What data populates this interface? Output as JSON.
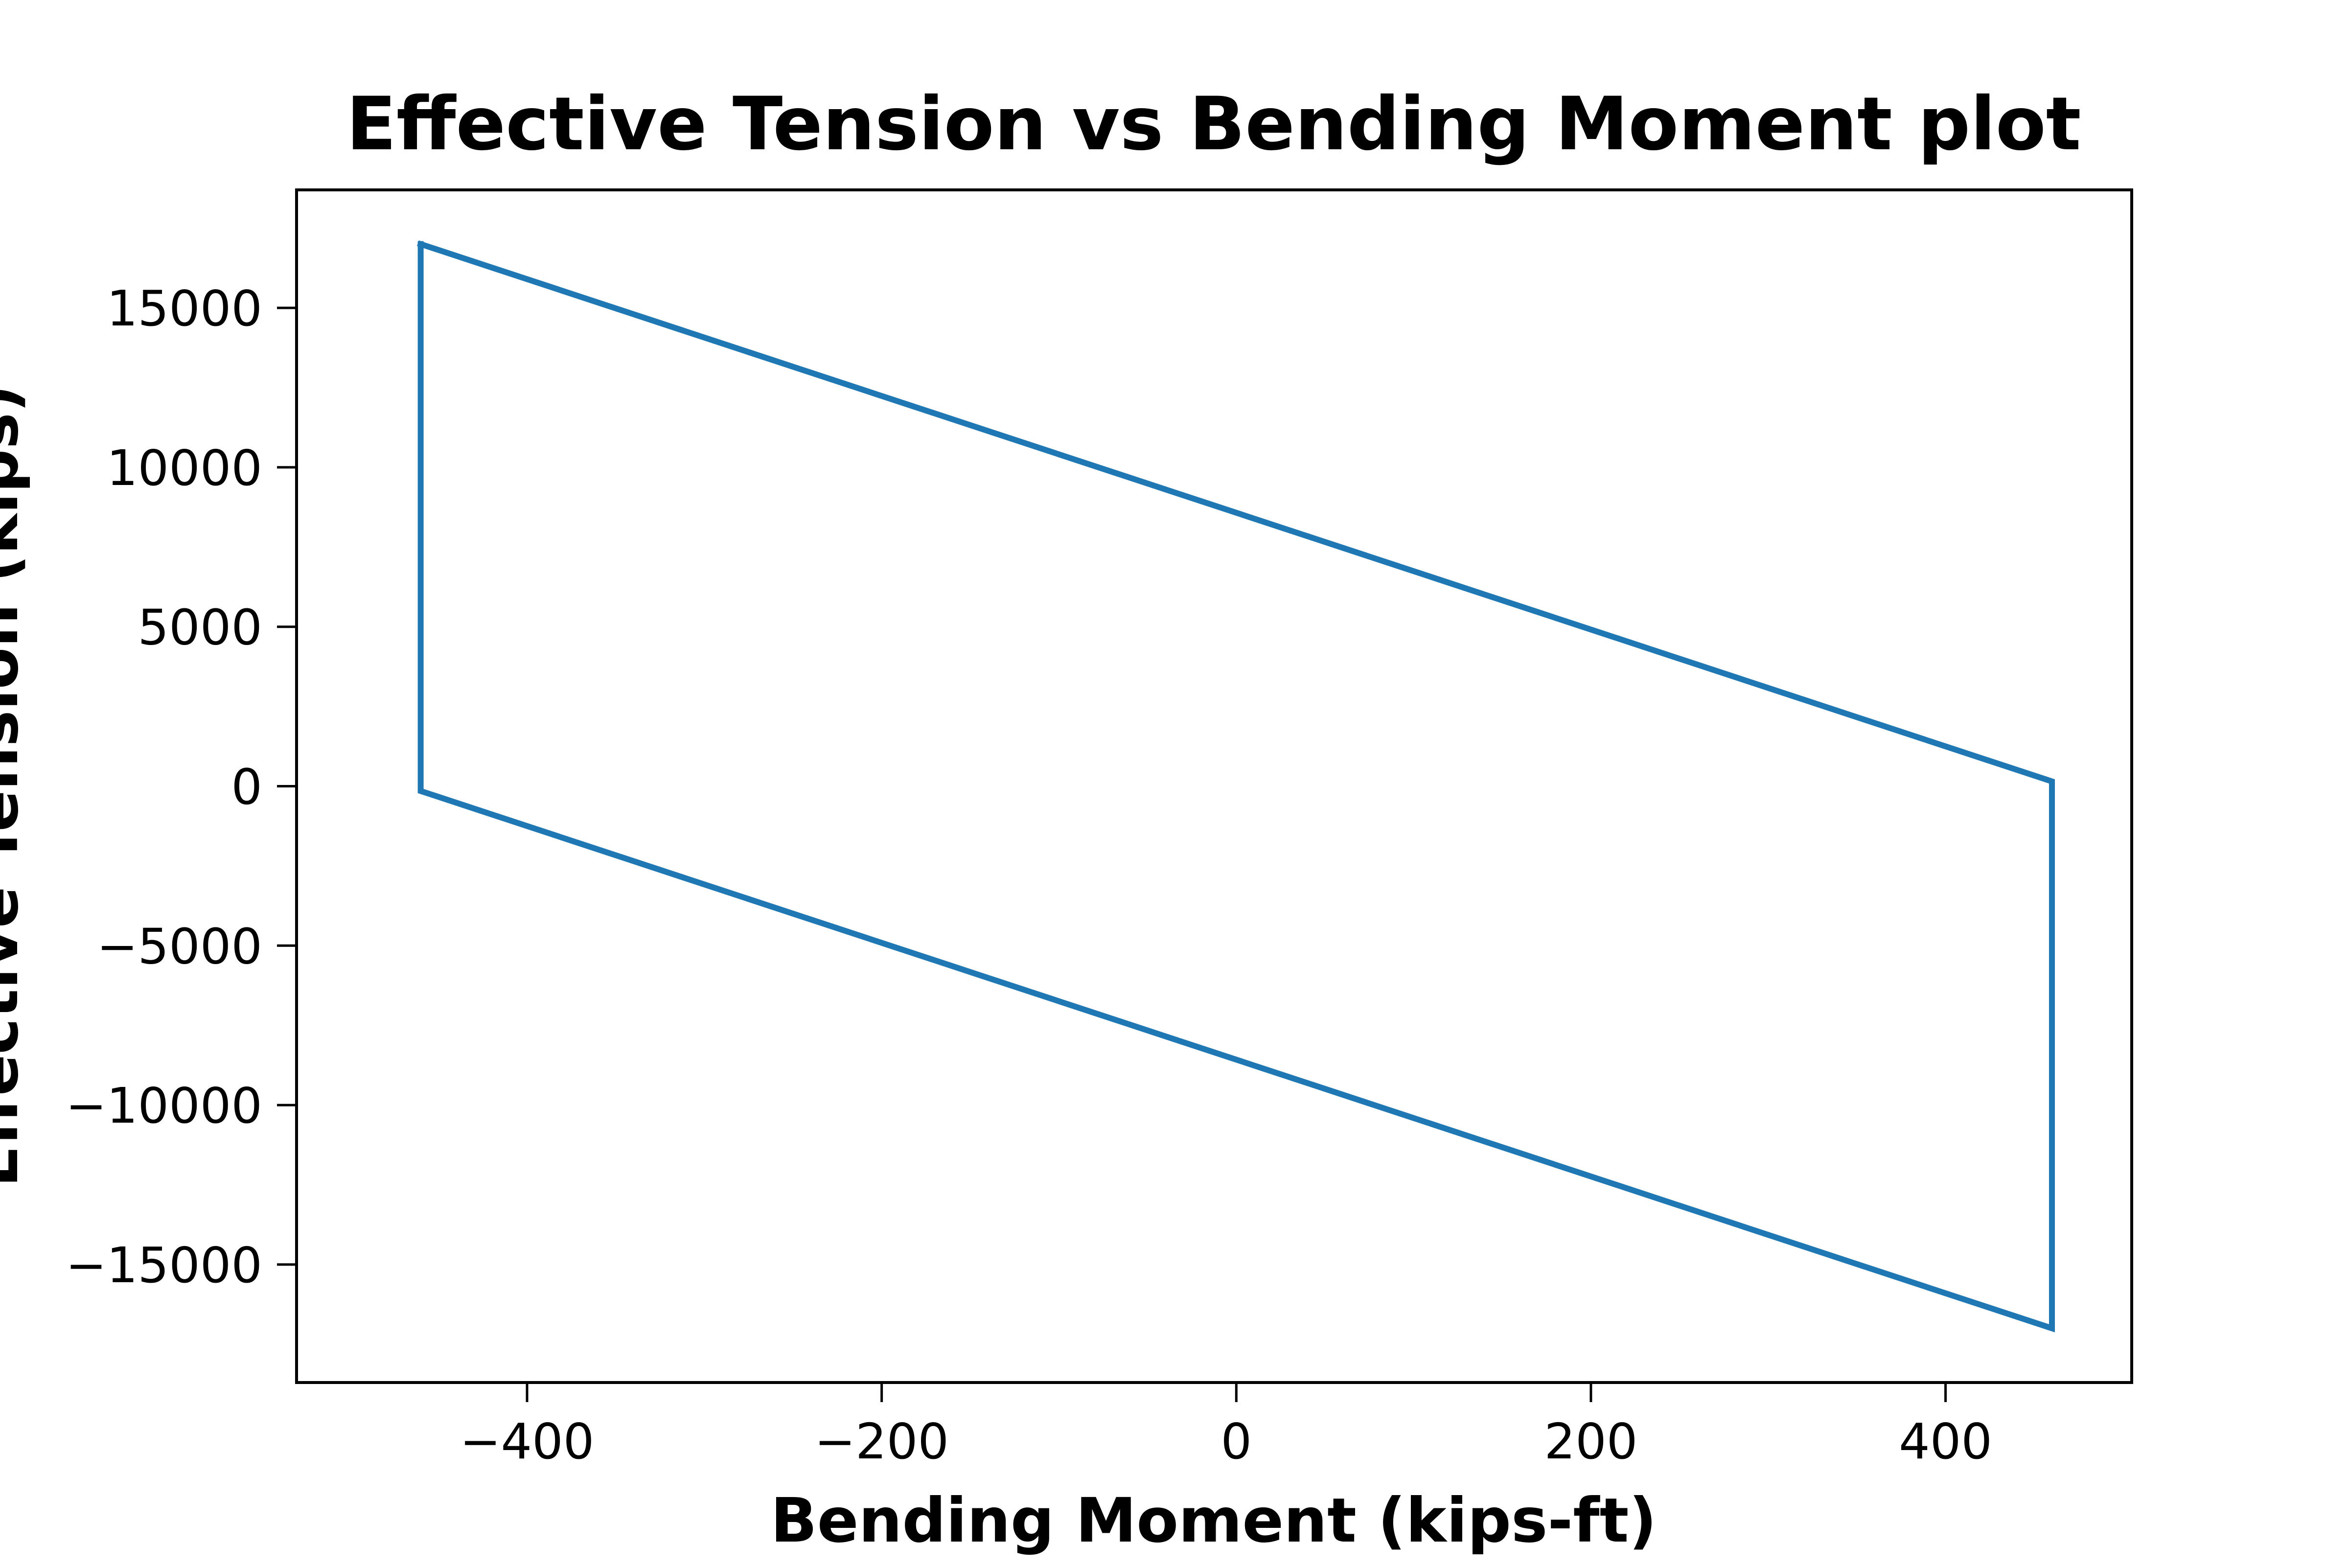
{
  "chart_data": {
    "type": "line",
    "title": "Effective Tension vs Bending Moment plot",
    "xlabel": "Bending Moment (kips-ft)",
    "ylabel": "Effective Tension (kips)",
    "xlim": [
      -530,
      505
    ],
    "ylim": [
      -18700,
      18700
    ],
    "xticks": [
      -400,
      -200,
      0,
      200,
      400
    ],
    "yticks": [
      -15000,
      -10000,
      -5000,
      0,
      5000,
      10000,
      15000
    ],
    "xtick_labels": [
      "−400",
      "−200",
      "0",
      "200",
      "400"
    ],
    "ytick_labels": [
      "−15000",
      "−10000",
      "−5000",
      "0",
      "5000",
      "10000",
      "15000"
    ],
    "grid": false,
    "series": [
      {
        "color": "#1f77b4",
        "x": [
          -460,
          460,
          460,
          -460,
          -460
        ],
        "y": [
          17000,
          150,
          -17000,
          -150,
          17000
        ]
      }
    ]
  }
}
